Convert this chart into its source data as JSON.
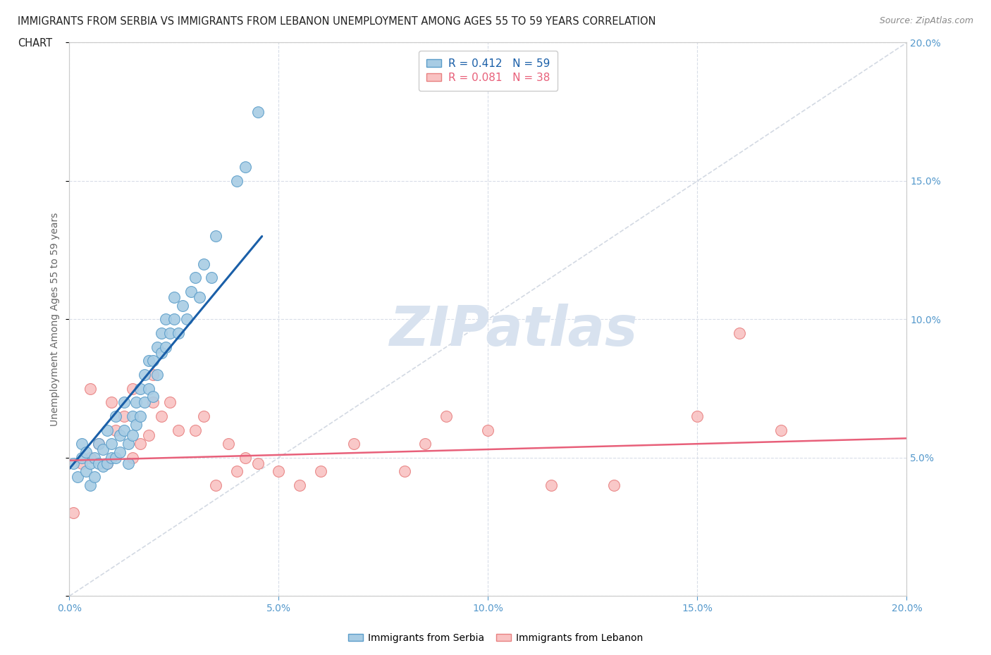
{
  "title_line1": "IMMIGRANTS FROM SERBIA VS IMMIGRANTS FROM LEBANON UNEMPLOYMENT AMONG AGES 55 TO 59 YEARS CORRELATION",
  "title_line2": "CHART",
  "source_text": "Source: ZipAtlas.com",
  "ylabel": "Unemployment Among Ages 55 to 59 years",
  "serbia_R": "0.412",
  "serbia_N": "59",
  "lebanon_R": "0.081",
  "lebanon_N": "38",
  "serbia_scatter_fill": "#a8cce4",
  "serbia_scatter_edge": "#5b9dc9",
  "lebanon_scatter_fill": "#f9c2c2",
  "lebanon_scatter_edge": "#e88080",
  "serbia_trend_color": "#1a5fa8",
  "lebanon_trend_color": "#e8607a",
  "dashed_line_color": "#c8d0dc",
  "watermark_color": "#d8e2ef",
  "background_color": "#ffffff",
  "grid_color": "#d8dde8",
  "legend_edge_color": "#cccccc",
  "title_color": "#222222",
  "source_color": "#888888",
  "tick_color": "#5599cc",
  "ylabel_color": "#666666",
  "xlim": [
    0.0,
    0.2
  ],
  "ylim": [
    0.0,
    0.2
  ],
  "xtick_values": [
    0.0,
    0.05,
    0.1,
    0.15,
    0.2
  ],
  "xtick_labels": [
    "0.0%",
    "5.0%",
    "10.0%",
    "15.0%",
    "20.0%"
  ],
  "ytick_values": [
    0.0,
    0.05,
    0.1,
    0.15,
    0.2
  ],
  "ytick_labels_right": [
    "",
    "5.0%",
    "10.0%",
    "15.0%",
    "20.0%"
  ],
  "serbia_x": [
    0.001,
    0.002,
    0.003,
    0.003,
    0.004,
    0.004,
    0.005,
    0.005,
    0.006,
    0.006,
    0.007,
    0.007,
    0.008,
    0.008,
    0.009,
    0.009,
    0.01,
    0.01,
    0.011,
    0.011,
    0.012,
    0.012,
    0.013,
    0.013,
    0.014,
    0.014,
    0.015,
    0.015,
    0.016,
    0.016,
    0.017,
    0.017,
    0.018,
    0.018,
    0.019,
    0.019,
    0.02,
    0.02,
    0.021,
    0.021,
    0.022,
    0.022,
    0.023,
    0.023,
    0.024,
    0.025,
    0.025,
    0.026,
    0.027,
    0.028,
    0.029,
    0.03,
    0.031,
    0.032,
    0.034,
    0.035,
    0.04,
    0.042,
    0.045
  ],
  "serbia_y": [
    0.048,
    0.043,
    0.05,
    0.055,
    0.045,
    0.052,
    0.048,
    0.04,
    0.05,
    0.043,
    0.048,
    0.055,
    0.047,
    0.053,
    0.048,
    0.06,
    0.05,
    0.055,
    0.05,
    0.065,
    0.052,
    0.058,
    0.07,
    0.06,
    0.055,
    0.048,
    0.065,
    0.058,
    0.07,
    0.062,
    0.075,
    0.065,
    0.08,
    0.07,
    0.075,
    0.085,
    0.085,
    0.072,
    0.09,
    0.08,
    0.088,
    0.095,
    0.09,
    0.1,
    0.095,
    0.1,
    0.108,
    0.095,
    0.105,
    0.1,
    0.11,
    0.115,
    0.108,
    0.12,
    0.115,
    0.13,
    0.15,
    0.155,
    0.175
  ],
  "lebanon_x": [
    0.001,
    0.003,
    0.005,
    0.007,
    0.009,
    0.011,
    0.013,
    0.015,
    0.017,
    0.019,
    0.02,
    0.022,
    0.024,
    0.026,
    0.03,
    0.032,
    0.035,
    0.038,
    0.04,
    0.042,
    0.045,
    0.05,
    0.055,
    0.06,
    0.068,
    0.08,
    0.085,
    0.09,
    0.1,
    0.115,
    0.13,
    0.15,
    0.16,
    0.17,
    0.005,
    0.01,
    0.015,
    0.02
  ],
  "lebanon_y": [
    0.03,
    0.048,
    0.05,
    0.055,
    0.048,
    0.06,
    0.065,
    0.05,
    0.055,
    0.058,
    0.07,
    0.065,
    0.07,
    0.06,
    0.06,
    0.065,
    0.04,
    0.055,
    0.045,
    0.05,
    0.048,
    0.045,
    0.04,
    0.045,
    0.055,
    0.045,
    0.055,
    0.065,
    0.06,
    0.04,
    0.04,
    0.065,
    0.095,
    0.06,
    0.075,
    0.07,
    0.075,
    0.08
  ],
  "serbia_trend_x": [
    0.0,
    0.046
  ],
  "serbia_trend_y": [
    0.046,
    0.13
  ],
  "lebanon_trend_x": [
    0.0,
    0.2
  ],
  "lebanon_trend_y": [
    0.049,
    0.057
  ]
}
